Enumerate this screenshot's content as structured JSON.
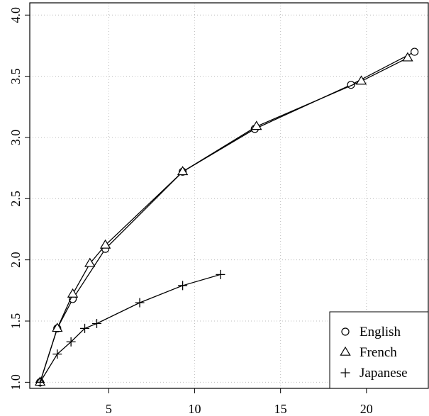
{
  "chart_data": {
    "type": "line",
    "title": "",
    "xlabel": "",
    "ylabel": "",
    "xlim": [
      0.4,
      23.6
    ],
    "ylim": [
      0.95,
      4.1
    ],
    "x_ticks": [
      5,
      10,
      15,
      20
    ],
    "y_ticks": [
      1.0,
      1.5,
      2.0,
      2.5,
      3.0,
      3.5,
      4.0
    ],
    "x_tick_labels": [
      "5",
      "10",
      "15",
      "20"
    ],
    "y_tick_labels": [
      "1.0",
      "1.5",
      "2.0",
      "2.5",
      "3.0",
      "3.5",
      "4.0"
    ],
    "grid": true,
    "legend_position": "bottom-right",
    "series": [
      {
        "name": "English",
        "marker": "circle",
        "x": [
          1.0,
          2.0,
          2.9,
          4.8,
          9.3,
          13.5,
          19.1,
          22.8
        ],
        "y": [
          1.0,
          1.44,
          1.68,
          2.09,
          2.72,
          3.07,
          3.43,
          3.7
        ]
      },
      {
        "name": "French",
        "marker": "triangle",
        "x": [
          1.0,
          2.0,
          2.9,
          3.9,
          4.8,
          9.3,
          13.6,
          19.7,
          22.4
        ],
        "y": [
          1.0,
          1.44,
          1.72,
          1.97,
          2.12,
          2.72,
          3.09,
          3.46,
          3.65
        ]
      },
      {
        "name": "Japanese",
        "marker": "plus",
        "x": [
          1.0,
          2.0,
          2.8,
          3.6,
          4.3,
          6.8,
          9.3,
          11.5
        ],
        "y": [
          1.0,
          1.23,
          1.33,
          1.44,
          1.48,
          1.65,
          1.79,
          1.88
        ]
      }
    ]
  }
}
